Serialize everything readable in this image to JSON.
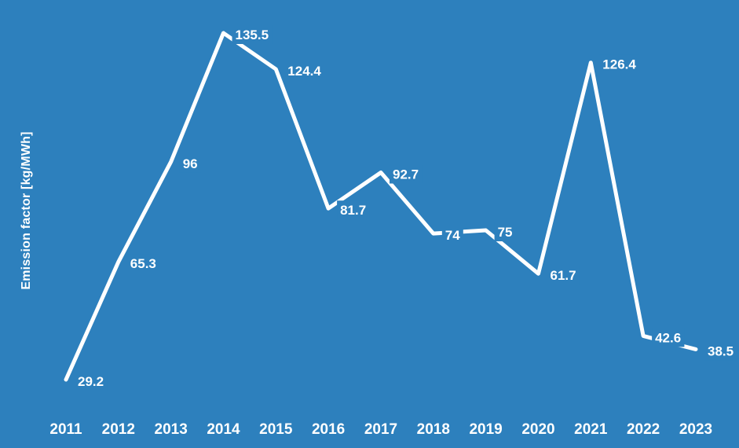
{
  "chart_data": {
    "type": "line",
    "title": "",
    "xlabel": "",
    "ylabel": "Emission factor [kg/MWh]",
    "categories": [
      "2011",
      "2012",
      "2013",
      "2014",
      "2015",
      "2016",
      "2017",
      "2018",
      "2019",
      "2020",
      "2021",
      "2022",
      "2023"
    ],
    "series": [
      {
        "name": "Emission factor",
        "values": [
          29.2,
          65.3,
          96,
          135.5,
          124.4,
          81.7,
          92.7,
          74,
          75,
          61.7,
          126.4,
          42.6,
          38.5
        ],
        "labels": [
          "29.2",
          "65.3",
          "96",
          "135.5",
          "124.4",
          "81.7",
          "92.7",
          "74",
          "75",
          "61.7",
          "126.4",
          "42.6",
          "38.5"
        ]
      }
    ],
    "legend_position": "none",
    "grid": false,
    "axis_lines": false,
    "markers": false,
    "data_labels_visible": true,
    "ylim": [
      20,
      145
    ]
  },
  "colors": {
    "background": "#2D80BD",
    "line": "#FFFFFF",
    "text": "#FFFFFF"
  }
}
